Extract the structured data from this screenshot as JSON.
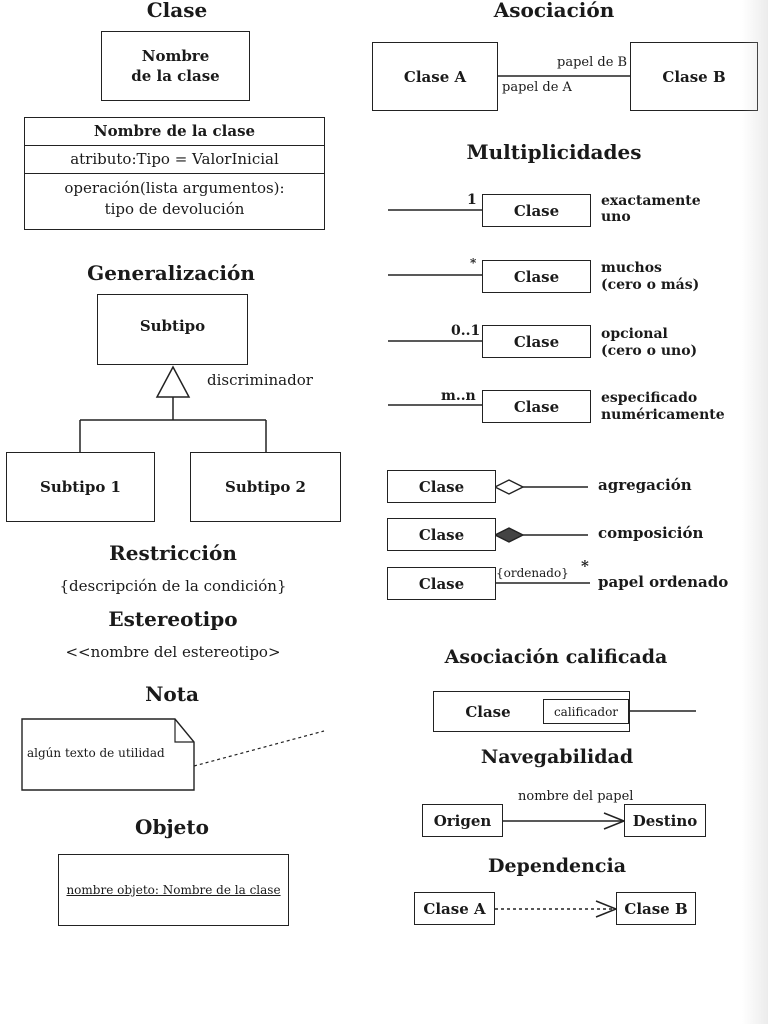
{
  "clase": {
    "heading": "Clase",
    "box_line1": "Nombre",
    "box_line2": "de la clase",
    "full_name": "Nombre de la clase",
    "attribute": "atributo:Tipo = ValorInicial",
    "operation_line1": "operación(lista argumentos):",
    "operation_line2": "tipo de devolución"
  },
  "generalizacion": {
    "heading": "Generalización",
    "supertype": "Subtipo",
    "discriminator": "discriminador",
    "subtype1": "Subtipo 1",
    "subtype2": "Subtipo 2"
  },
  "restriccion": {
    "heading": "Restricción",
    "text": "{descripción de la condición}"
  },
  "estereotipo": {
    "heading": "Estereotipo",
    "text": "<<nombre del  estereotipo>"
  },
  "nota": {
    "heading": "Nota",
    "text": "algún texto de utilidad"
  },
  "objeto": {
    "heading": "Objeto",
    "text": "nombre objeto: Nombre de la clase"
  },
  "asociacion": {
    "heading": "Asociación",
    "class_a": "Clase A",
    "class_b": "Clase B",
    "role_b": "papel de B",
    "role_a": "papel de A"
  },
  "multiplicidades": {
    "heading": "Multiplicidades",
    "rows": [
      {
        "mult": "1",
        "class": "Clase",
        "desc1": "exactamente",
        "desc2": "uno"
      },
      {
        "mult": "*",
        "class": "Clase",
        "desc1": "muchos",
        "desc2": "(cero o más)"
      },
      {
        "mult": "0..1",
        "class": "Clase",
        "desc1": "opcional",
        "desc2": "(cero o uno)"
      },
      {
        "mult": "m..n",
        "class": "Clase",
        "desc1": "especificado",
        "desc2": "numéricamente"
      }
    ]
  },
  "relaciones": {
    "aggregation": {
      "class": "Clase",
      "label": "agregación"
    },
    "composition": {
      "class": "Clase",
      "label": "composición"
    },
    "ordered": {
      "class": "Clase",
      "constraint": "{ordenado}",
      "mult": "*",
      "label": "papel ordenado"
    }
  },
  "asociacion_calificada": {
    "heading": "Asociación calificada",
    "class": "Clase",
    "qualifier": "calificador"
  },
  "navegabilidad": {
    "heading": "Navegabilidad",
    "source": "Origen",
    "target": "Destino",
    "role": "nombre del papel"
  },
  "dependencia": {
    "heading": "Dependencia",
    "source": "Clase A",
    "target": "Clase B"
  }
}
